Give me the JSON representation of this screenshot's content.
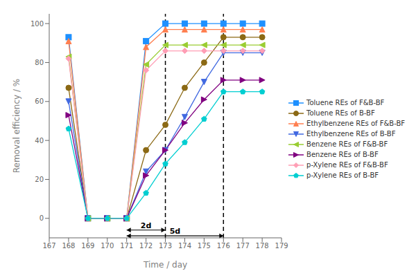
{
  "chart_data": {
    "type": "line",
    "title": "",
    "xlabel": "Time / day",
    "ylabel": "Removal efficiency / %",
    "x": [
      168,
      169,
      170,
      171,
      172,
      173,
      174,
      175,
      176,
      177,
      178
    ],
    "xlim": [
      167,
      179
    ],
    "ylim": [
      -10,
      105
    ],
    "xticks": [
      167,
      168,
      169,
      170,
      171,
      172,
      173,
      174,
      175,
      176,
      177,
      178,
      179
    ],
    "yticks": [
      0,
      20,
      40,
      60,
      80,
      100
    ],
    "grid": false,
    "legend": "right",
    "vertical_lines": [
      {
        "x": 173,
        "line_style": "dashed"
      },
      {
        "x": 176,
        "line_style": "dashed"
      }
    ],
    "annotations": [
      {
        "text": "2d",
        "x1": 171,
        "x2": 173,
        "y": -6
      },
      {
        "text": "5d",
        "x1": 171,
        "x2": 176,
        "y": -9
      }
    ],
    "series": [
      {
        "name": "Toluene REs of F&B-BF",
        "color": "#1e90ff",
        "marker": "square",
        "values": [
          93,
          0,
          0,
          0,
          91,
          100,
          100,
          100,
          100,
          100,
          100
        ]
      },
      {
        "name": "Toluene REs of B-BF",
        "color": "#8b6914",
        "marker": "circle",
        "values": [
          67,
          0,
          0,
          0,
          35,
          48,
          67,
          80,
          93,
          93,
          93
        ]
      },
      {
        "name": "Ethylbenzene REs of F&B-BF",
        "color": "#ff7f50",
        "marker": "triangle-up",
        "values": [
          91,
          0,
          0,
          0,
          88,
          97,
          97,
          97,
          97,
          97,
          97
        ]
      },
      {
        "name": "Ethylbenzene REs of B-BF",
        "color": "#4169e1",
        "marker": "triangle-down",
        "values": [
          60,
          0,
          0,
          0,
          24,
          35,
          52,
          70,
          85,
          85,
          85
        ]
      },
      {
        "name": "Benzene REs of F&B-BF",
        "color": "#9acd32",
        "marker": "triangle-left",
        "values": [
          83,
          0,
          0,
          0,
          79,
          89,
          89,
          89,
          89,
          89,
          89
        ]
      },
      {
        "name": "Benzene REs of B-BF",
        "color": "#800080",
        "marker": "triangle-right",
        "values": [
          53,
          0,
          0,
          0,
          22,
          35,
          49,
          61,
          71,
          71,
          71
        ]
      },
      {
        "name": "p-Xylene REs of F&B-BF",
        "color": "#ff9eb5",
        "marker": "diamond",
        "values": [
          82,
          0,
          0,
          0,
          76,
          86,
          86,
          86,
          86,
          86,
          86
        ]
      },
      {
        "name": "p-Xylene REs of B-BF",
        "color": "#00ced1",
        "marker": "pentagon",
        "values": [
          46,
          0,
          0,
          0,
          13,
          28,
          39,
          51,
          65,
          65,
          65
        ]
      }
    ]
  }
}
